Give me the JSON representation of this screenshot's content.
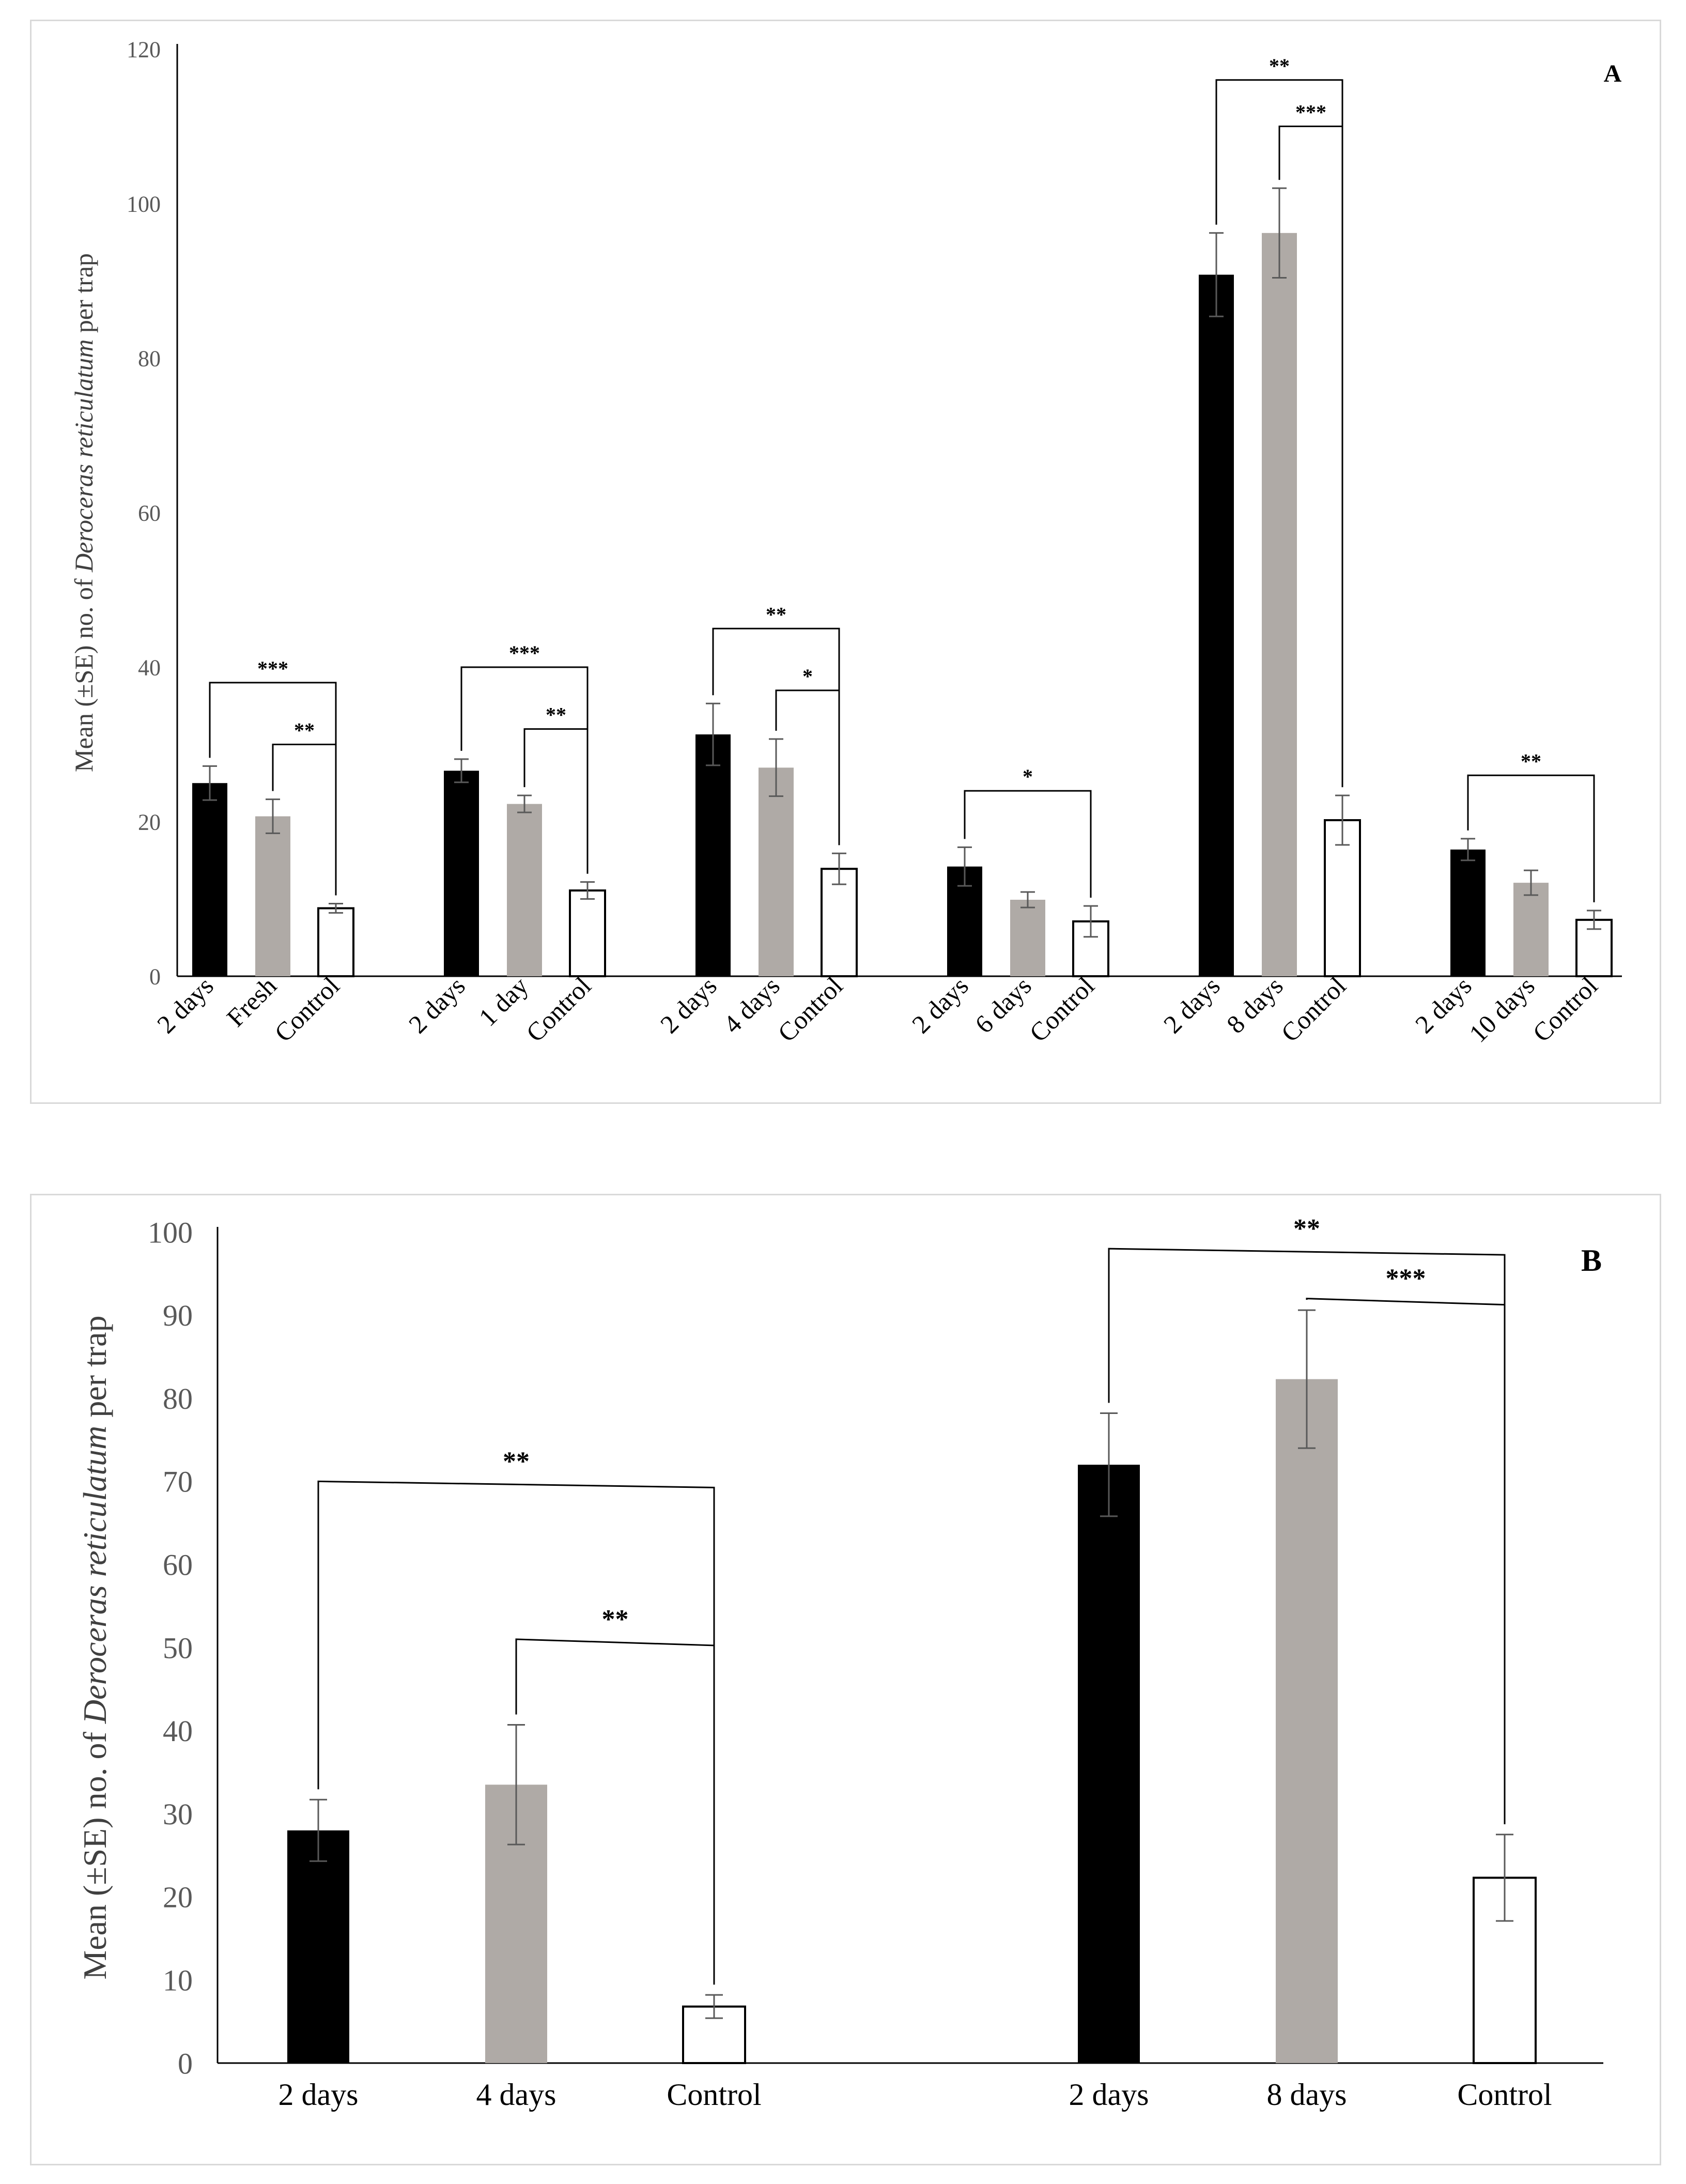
{
  "chart_data": [
    {
      "type": "bar",
      "panel_label": "A",
      "ylabel_parts": [
        "Mean (±SE) no. of ",
        "Deroceras reticulatum",
        " per trap"
      ],
      "ylim": [
        0,
        120
      ],
      "yticks": [
        "0",
        "20",
        "40",
        "60",
        "80",
        "100",
        "120"
      ],
      "groups": [
        {
          "bars": [
            {
              "label": "2 days",
              "value": 25,
              "err": 2.2,
              "color": "#000000"
            },
            {
              "label": "Fresh",
              "value": 20.7,
              "err": 2.2,
              "color": "#afaaa6"
            },
            {
              "label": "Control",
              "value": 8.8,
              "err": 0.6,
              "color": "#ffffff"
            }
          ]
        },
        {
          "bars": [
            {
              "label": "2 days",
              "value": 26.6,
              "err": 1.5,
              "color": "#000000"
            },
            {
              "label": "1 day",
              "value": 22.3,
              "err": 1.1,
              "color": "#afaaa6"
            },
            {
              "label": "Control",
              "value": 11.1,
              "err": 1.1,
              "color": "#ffffff"
            }
          ]
        },
        {
          "bars": [
            {
              "label": "2 days",
              "value": 31.3,
              "err": 4,
              "color": "#000000"
            },
            {
              "label": "4 days",
              "value": 27,
              "err": 3.7,
              "color": "#afaaa6"
            },
            {
              "label": "Control",
              "value": 13.9,
              "err": 2,
              "color": "#ffffff"
            }
          ]
        },
        {
          "bars": [
            {
              "label": "2 days",
              "value": 14.2,
              "err": 2.5,
              "color": "#000000"
            },
            {
              "label": "6 days",
              "value": 9.9,
              "err": 1,
              "color": "#afaaa6"
            },
            {
              "label": "Control",
              "value": 7.1,
              "err": 2,
              "color": "#ffffff"
            }
          ]
        },
        {
          "bars": [
            {
              "label": "2 days",
              "value": 90.8,
              "err": 5.4,
              "color": "#000000"
            },
            {
              "label": "8 days",
              "value": 96.2,
              "err": 5.8,
              "color": "#afaaa6"
            },
            {
              "label": "Control",
              "value": 20.2,
              "err": 3.2,
              "color": "#ffffff"
            }
          ]
        },
        {
          "bars": [
            {
              "label": "2 days",
              "value": 16.4,
              "err": 1.4,
              "color": "#000000"
            },
            {
              "label": "10 days",
              "value": 12.1,
              "err": 1.6,
              "color": "#afaaa6"
            },
            {
              "label": "Control",
              "value": 7.3,
              "err": 1.2,
              "color": "#ffffff"
            }
          ]
        }
      ],
      "significance": [
        {
          "group": 0,
          "from": 0,
          "to": 2,
          "level": 38,
          "label": "***"
        },
        {
          "group": 0,
          "from": 1,
          "to": 2,
          "level": 30,
          "label": "**"
        },
        {
          "group": 1,
          "from": 0,
          "to": 2,
          "level": 40,
          "label": "***"
        },
        {
          "group": 1,
          "from": 1,
          "to": 2,
          "level": 32,
          "label": "**"
        },
        {
          "group": 2,
          "from": 0,
          "to": 2,
          "level": 45,
          "label": "**"
        },
        {
          "group": 2,
          "from": 1,
          "to": 2,
          "level": 37,
          "label": "*"
        },
        {
          "group": 3,
          "from": 0,
          "to": 2,
          "level": 24,
          "label": "*"
        },
        {
          "group": 4,
          "from": 0,
          "to": 2,
          "level": 116,
          "label": "**"
        },
        {
          "group": 4,
          "from": 1,
          "to": 2,
          "level": 110,
          "label": "***"
        },
        {
          "group": 5,
          "from": 0,
          "to": 2,
          "level": 26,
          "label": "**"
        }
      ]
    },
    {
      "type": "bar",
      "panel_label": "B",
      "ylabel_parts": [
        "Mean (±SE) no. of ",
        "Deroceras reticulatum",
        " per trap"
      ],
      "ylim": [
        0,
        100
      ],
      "yticks": [
        "0",
        "10",
        "20",
        "30",
        "40",
        "50",
        "60",
        "70",
        "80",
        "90",
        "100"
      ],
      "groups": [
        {
          "bars": [
            {
              "label": "2 days",
              "value": 28,
              "err": 3.7,
              "color": "#000000"
            },
            {
              "label": "4 days",
              "value": 33.5,
              "err": 7.2,
              "color": "#afaaa6"
            },
            {
              "label": "Control",
              "value": 6.8,
              "err": 1.4,
              "color": "#ffffff"
            }
          ]
        },
        {
          "bars": [
            {
              "label": "2 days",
              "value": 72,
              "err": 6.2,
              "color": "#000000"
            },
            {
              "label": "8 days",
              "value": 82.3,
              "err": 8.3,
              "color": "#afaaa6"
            },
            {
              "label": "Control",
              "value": 22.3,
              "err": 5.2,
              "color": "#ffffff"
            }
          ]
        }
      ],
      "significance": [
        {
          "group": 0,
          "from": 0,
          "to": 2,
          "level": 70,
          "label": "**"
        },
        {
          "group": 0,
          "from": 1,
          "to": 2,
          "level": 51,
          "label": "**"
        },
        {
          "group": 1,
          "from": 0,
          "to": 2,
          "level": 98,
          "label": "**"
        },
        {
          "group": 1,
          "from": 1,
          "to": 2,
          "level": 92,
          "label": "***"
        }
      ]
    }
  ]
}
